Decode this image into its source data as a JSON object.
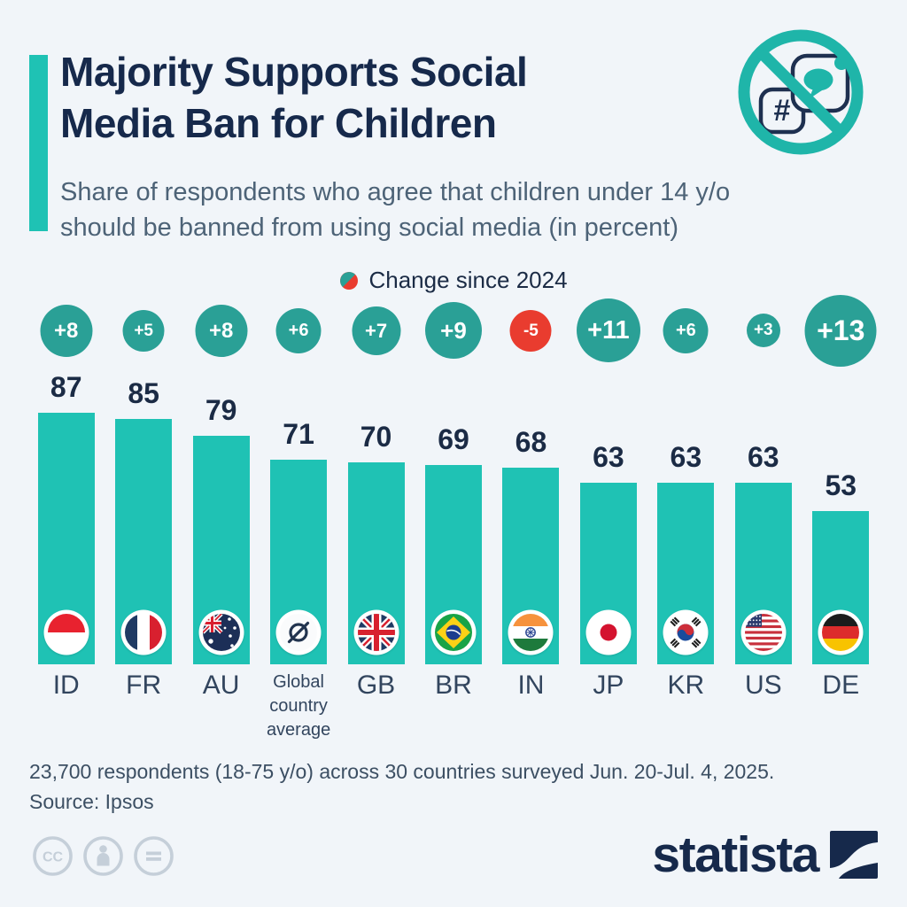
{
  "page": {
    "title_lines": [
      "Majority Supports Social",
      "Media Ban for Children"
    ],
    "subtitle_lines": [
      "Share of respondents who agree that children under 14 y/o",
      "should be banned from using social media (in percent)"
    ],
    "footer_note": "23,700 respondents (18-75 y/o) across 30 countries surveyed Jun. 20-Jul. 4, 2025.",
    "footer_source": "Source: Ipsos",
    "brand": "statista"
  },
  "legend": {
    "label": "Change since 2024"
  },
  "colors": {
    "background": "#f1f5f9",
    "bar_teal": "#1fc2b4",
    "badge_teal": "#2aa096",
    "negative_red": "#e93c2f",
    "navy": "#16294b"
  },
  "chart_data": {
    "type": "bar",
    "title": "Majority Supports Social Media Ban for Children",
    "subtitle": "Share of respondents who agree that children under 14 y/o should be banned from using social media (in percent)",
    "ylabel": "Share of respondents (percent)",
    "ylim": [
      0,
      100
    ],
    "grid": false,
    "legend_label": "Change since 2024",
    "categories": [
      "ID",
      "FR",
      "AU",
      "Global country average",
      "GB",
      "BR",
      "IN",
      "JP",
      "KR",
      "US",
      "DE"
    ],
    "values": [
      87,
      85,
      79,
      71,
      70,
      69,
      68,
      63,
      63,
      63,
      53
    ],
    "change_since_2024": [
      8,
      5,
      8,
      6,
      7,
      9,
      -5,
      11,
      6,
      3,
      13
    ],
    "flags": [
      "id",
      "fr",
      "au",
      "avg",
      "gb",
      "br",
      "in",
      "jp",
      "kr",
      "us",
      "de"
    ]
  }
}
